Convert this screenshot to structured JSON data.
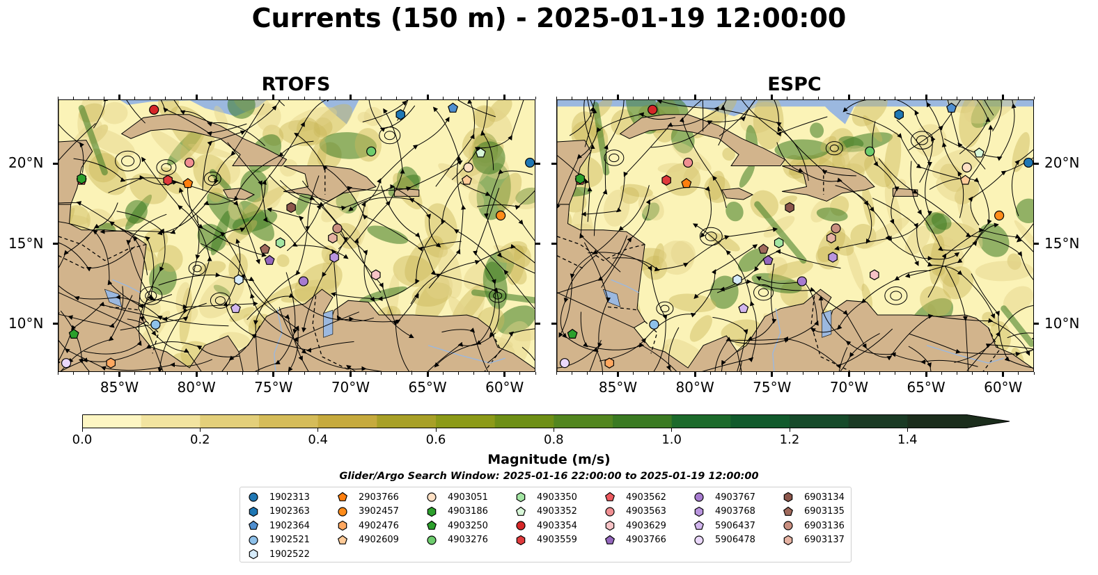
{
  "title": "Currents (150 m) - 2025-01-19 12:00:00",
  "panels": [
    {
      "name": "RTOFS"
    },
    {
      "name": "ESPC"
    }
  ],
  "map": {
    "lon_range": [
      -89,
      -58
    ],
    "lat_range": [
      7,
      24
    ],
    "lon_ticks": [
      "85°W",
      "80°W",
      "75°W",
      "70°W",
      "65°W",
      "60°W"
    ],
    "lat_ticks": [
      "20°N",
      "15°N",
      "10°N"
    ],
    "ocean_color": "#9bb8df",
    "land_color": "#d2b48c",
    "field_low_color": "#fbf3b7",
    "field_mid_color": "#c9b75a",
    "field_high_color": "#3c7a22"
  },
  "colorbar": {
    "label": "Magnitude (m/s)",
    "ticks": [
      "0.0",
      "0.2",
      "0.4",
      "0.6",
      "0.8",
      "1.0",
      "1.2",
      "1.4"
    ],
    "min": 0.0,
    "max": 1.5,
    "extend": "max",
    "colors": [
      "#fdf6c3",
      "#f2e4a0",
      "#e3cf7a",
      "#d5bc59",
      "#c6aa3d",
      "#a8a027",
      "#8c9a18",
      "#6e8f16",
      "#52861f",
      "#3a7a22",
      "#1c6a2b",
      "#115a2c",
      "#164a2a",
      "#1a3a24",
      "#1b2d1c"
    ]
  },
  "search_window": "Glider/Argo Search Window: 2025-01-16 22:00:00 to 2025-01-19 12:00:00",
  "legend": [
    {
      "id": "1902313",
      "marker": "circle",
      "color": "#1f77b4"
    },
    {
      "id": "1902363",
      "marker": "hexagon",
      "color": "#1f77b4"
    },
    {
      "id": "1902364",
      "marker": "pentagon",
      "color": "#4f8fd0"
    },
    {
      "id": "1902521",
      "marker": "circle",
      "color": "#8ec1ea"
    },
    {
      "id": "1902522",
      "marker": "hexagon",
      "color": "#d6ebfa"
    },
    {
      "id": "2903766",
      "marker": "pentagon",
      "color": "#ff7f0e"
    },
    {
      "id": "3902457",
      "marker": "circle",
      "color": "#ff8c1a"
    },
    {
      "id": "4902476",
      "marker": "hexagon",
      "color": "#ffa860"
    },
    {
      "id": "4902609",
      "marker": "pentagon",
      "color": "#ffcb98"
    },
    {
      "id": "4903051",
      "marker": "circle",
      "color": "#ffe0c4"
    },
    {
      "id": "4903186",
      "marker": "hexagon",
      "color": "#2ca02c"
    },
    {
      "id": "4903250",
      "marker": "pentagon",
      "color": "#2ca02c"
    },
    {
      "id": "4903276",
      "marker": "circle",
      "color": "#6dcc6d"
    },
    {
      "id": "4903350",
      "marker": "hexagon",
      "color": "#a3e6a3"
    },
    {
      "id": "4903352",
      "marker": "pentagon",
      "color": "#d8f7d8"
    },
    {
      "id": "4903354",
      "marker": "circle",
      "color": "#d62728"
    },
    {
      "id": "4903559",
      "marker": "hexagon",
      "color": "#e03a3c"
    },
    {
      "id": "4903562",
      "marker": "pentagon",
      "color": "#ee5a5f"
    },
    {
      "id": "4903563",
      "marker": "circle",
      "color": "#f08f92"
    },
    {
      "id": "4903629",
      "marker": "hexagon",
      "color": "#f7c3c6"
    },
    {
      "id": "4903766",
      "marker": "pentagon",
      "color": "#9467bd"
    },
    {
      "id": "4903767",
      "marker": "circle",
      "color": "#a77bd0"
    },
    {
      "id": "4903768",
      "marker": "hexagon",
      "color": "#b995de"
    },
    {
      "id": "5906437",
      "marker": "pentagon",
      "color": "#d2b6ee"
    },
    {
      "id": "5906478",
      "marker": "circle",
      "color": "#ead8fb"
    },
    {
      "id": "6903134",
      "marker": "hexagon",
      "color": "#8c564b"
    },
    {
      "id": "6903135",
      "marker": "pentagon",
      "color": "#a06a5c"
    },
    {
      "id": "6903136",
      "marker": "circle",
      "color": "#c98f80"
    },
    {
      "id": "6903137",
      "marker": "hexagon",
      "color": "#e6b3a3"
    }
  ],
  "platforms": {
    "rtofs": [
      {
        "id": "4903354",
        "lon": -82.8,
        "lat": 23.4
      },
      {
        "id": "1902364",
        "lon": -63.4,
        "lat": 23.5
      },
      {
        "id": "1902363",
        "lon": -66.8,
        "lat": 23.1
      },
      {
        "id": "4903276",
        "lon": -68.7,
        "lat": 20.8
      },
      {
        "id": "4903352",
        "lon": -61.6,
        "lat": 20.7
      },
      {
        "id": "1902313",
        "lon": -58.4,
        "lat": 20.1
      },
      {
        "id": "4903051",
        "lon": -62.4,
        "lat": 19.8
      },
      {
        "id": "4902609",
        "lon": -62.5,
        "lat": 19.0
      },
      {
        "id": "4903562",
        "lon": -87.5,
        "lat": 19.0
      },
      {
        "id": "4903186",
        "lon": -87.5,
        "lat": 19.1
      },
      {
        "id": "4903563",
        "lon": -80.5,
        "lat": 20.1
      },
      {
        "id": "4903559",
        "lon": -81.9,
        "lat": 19.0
      },
      {
        "id": "2903766",
        "lon": -80.6,
        "lat": 18.8
      },
      {
        "id": "6903134",
        "lon": -73.9,
        "lat": 17.3
      },
      {
        "id": "3902457",
        "lon": -60.3,
        "lat": 16.8
      },
      {
        "id": "6903136",
        "lon": -70.9,
        "lat": 16.0
      },
      {
        "id": "6903137",
        "lon": -71.2,
        "lat": 15.4
      },
      {
        "id": "4903350",
        "lon": -74.6,
        "lat": 15.1
      },
      {
        "id": "6903135",
        "lon": -75.6,
        "lat": 14.7
      },
      {
        "id": "4903768",
        "lon": -71.1,
        "lat": 14.2
      },
      {
        "id": "4903766",
        "lon": -75.3,
        "lat": 14.0
      },
      {
        "id": "4903629",
        "lon": -68.4,
        "lat": 13.1
      },
      {
        "id": "4903767",
        "lon": -73.1,
        "lat": 12.7
      },
      {
        "id": "1902522",
        "lon": -77.3,
        "lat": 12.8
      },
      {
        "id": "5906437",
        "lon": -77.5,
        "lat": 11.0
      },
      {
        "id": "1902521",
        "lon": -82.7,
        "lat": 10.0
      },
      {
        "id": "4903250",
        "lon": -88.0,
        "lat": 9.4
      },
      {
        "id": "4902476",
        "lon": -85.6,
        "lat": 7.6
      },
      {
        "id": "5906478",
        "lon": -88.5,
        "lat": 7.6
      }
    ],
    "espc": [
      {
        "id": "4903354",
        "lon": -82.8,
        "lat": 23.4
      },
      {
        "id": "1902364",
        "lon": -63.4,
        "lat": 23.5
      },
      {
        "id": "1902363",
        "lon": -66.8,
        "lat": 23.1
      },
      {
        "id": "4903276",
        "lon": -68.7,
        "lat": 20.8
      },
      {
        "id": "4903352",
        "lon": -61.6,
        "lat": 20.7
      },
      {
        "id": "1902313",
        "lon": -58.4,
        "lat": 20.1
      },
      {
        "id": "4903051",
        "lon": -62.4,
        "lat": 19.8
      },
      {
        "id": "4902609",
        "lon": -62.5,
        "lat": 19.0
      },
      {
        "id": "4903562",
        "lon": -87.5,
        "lat": 19.0
      },
      {
        "id": "4903186",
        "lon": -87.5,
        "lat": 19.1
      },
      {
        "id": "4903563",
        "lon": -80.5,
        "lat": 20.1
      },
      {
        "id": "4903559",
        "lon": -81.9,
        "lat": 19.0
      },
      {
        "id": "2903766",
        "lon": -80.6,
        "lat": 18.8
      },
      {
        "id": "6903134",
        "lon": -73.9,
        "lat": 17.3
      },
      {
        "id": "3902457",
        "lon": -60.3,
        "lat": 16.8
      },
      {
        "id": "6903136",
        "lon": -70.9,
        "lat": 16.0
      },
      {
        "id": "6903137",
        "lon": -71.2,
        "lat": 15.4
      },
      {
        "id": "4903350",
        "lon": -74.6,
        "lat": 15.1
      },
      {
        "id": "6903135",
        "lon": -75.6,
        "lat": 14.7
      },
      {
        "id": "4903768",
        "lon": -71.1,
        "lat": 14.2
      },
      {
        "id": "4903766",
        "lon": -75.3,
        "lat": 14.0
      },
      {
        "id": "4903629",
        "lon": -68.4,
        "lat": 13.1
      },
      {
        "id": "4903767",
        "lon": -73.1,
        "lat": 12.7
      },
      {
        "id": "1902522",
        "lon": -77.3,
        "lat": 12.8
      },
      {
        "id": "5906437",
        "lon": -76.9,
        "lat": 11.0
      },
      {
        "id": "1902521",
        "lon": -82.7,
        "lat": 10.0
      },
      {
        "id": "4903250",
        "lon": -88.0,
        "lat": 9.4
      },
      {
        "id": "4902476",
        "lon": -85.6,
        "lat": 7.6
      },
      {
        "id": "5906478",
        "lon": -88.5,
        "lat": 7.6
      }
    ]
  }
}
